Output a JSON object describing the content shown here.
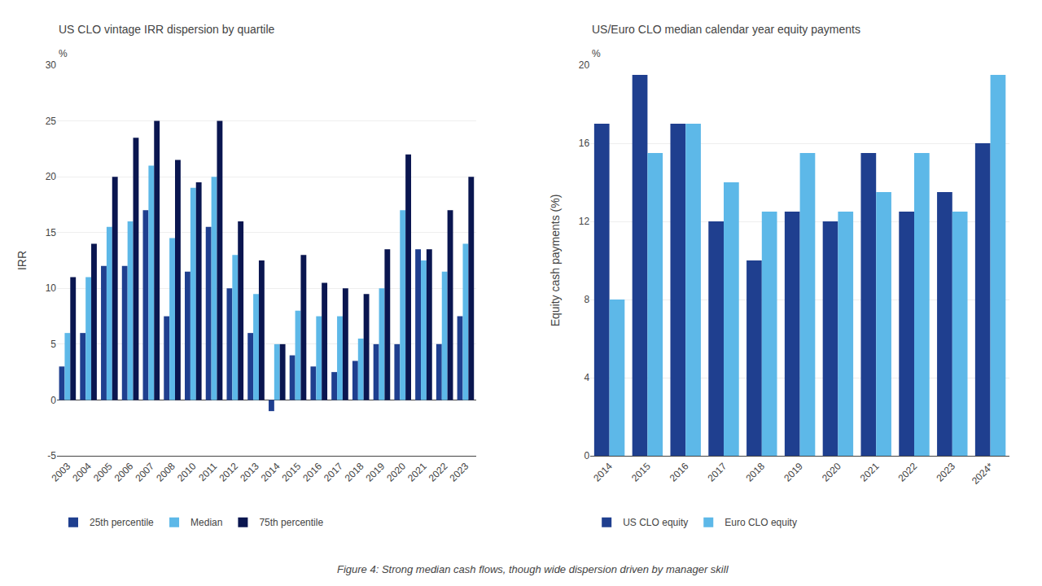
{
  "title": "Figure 4: Strong median cash flows, though wide dispersion driven by manager skill",
  "chart_data": [
    {
      "type": "bar",
      "title": "US CLO vintage IRR dispersion by quartile",
      "ylabel": "IRR",
      "annotations": [
        "%"
      ],
      "categories": [
        "2003",
        "2004",
        "2005",
        "2006",
        "2007",
        "2008",
        "2010",
        "2011",
        "2012",
        "2013",
        "2014",
        "2015",
        "2016",
        "2017",
        "2018",
        "2019",
        "2020",
        "2021",
        "2022",
        "2023"
      ],
      "series": [
        {
          "name": "25th percentile",
          "color": "#1f3f8f",
          "values": [
            3,
            6,
            12,
            12,
            17,
            7.5,
            11.5,
            15.5,
            10,
            6,
            -1,
            4,
            3,
            2.5,
            3.5,
            5,
            5,
            13.5,
            5,
            7.5
          ]
        },
        {
          "name": "Median",
          "color": "#5db8e8",
          "values": [
            6,
            11,
            15.5,
            16,
            21,
            14.5,
            19,
            20,
            13,
            9.5,
            5,
            8,
            7.5,
            7.5,
            5.5,
            10,
            17,
            12.5,
            11.5,
            14
          ]
        },
        {
          "name": "75th percentile",
          "color": "#0a1650",
          "values": [
            11,
            14,
            20,
            23.5,
            25,
            21.5,
            19.5,
            25,
            16,
            12.5,
            5,
            13,
            10.5,
            10,
            9.5,
            13.5,
            22,
            13.5,
            17,
            20
          ]
        }
      ],
      "ylim": [
        -5,
        30
      ],
      "yticks": [
        -5,
        0,
        5,
        10,
        15,
        20,
        25,
        30
      ],
      "grid": true,
      "legend": "bottom"
    },
    {
      "type": "bar",
      "title": "US/Euro CLO median calendar year equity payments",
      "ylabel": "Equity cash payments (%)",
      "annotations": [
        "%"
      ],
      "categories": [
        "2014",
        "2015",
        "2016",
        "2017",
        "2018",
        "2019",
        "2020",
        "2021",
        "2022",
        "2023",
        "2024*"
      ],
      "series": [
        {
          "name": "US CLO equity",
          "color": "#1f3f8f",
          "values": [
            17,
            19.5,
            17,
            12,
            10,
            12.5,
            12,
            15.5,
            12.5,
            13.5,
            16
          ]
        },
        {
          "name": "Euro CLO equity",
          "color": "#5db8e8",
          "values": [
            8,
            15.5,
            17,
            14,
            12.5,
            15.5,
            12.5,
            13.5,
            15.5,
            12.5,
            19.5
          ]
        }
      ],
      "ylim": [
        0,
        20
      ],
      "yticks": [
        0,
        4,
        8,
        12,
        16,
        20
      ],
      "grid": true,
      "legend": "bottom"
    }
  ]
}
